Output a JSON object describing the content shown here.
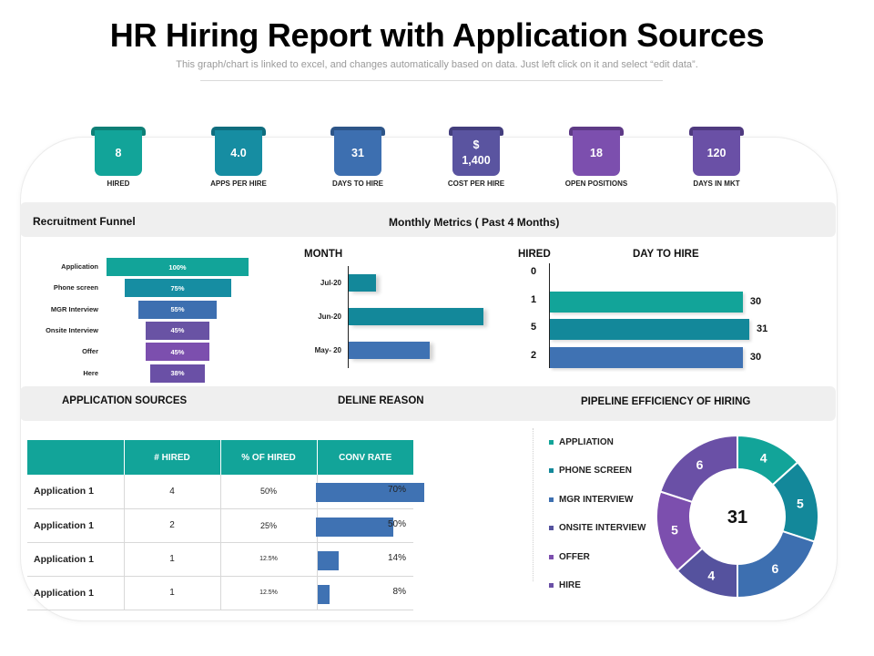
{
  "header": {
    "title": "HR Hiring Report with Application Sources",
    "subtitle": "This graph/chart is linked to excel, and changes automatically based on data.  Just left click on it and select “edit data”."
  },
  "colors": {
    "teal": "#12a499",
    "teal_dark": "#13889a",
    "blue": "#3f72b3",
    "purple": "#6b55a3",
    "purple_light": "#7c4fb0",
    "band": "#efefef"
  },
  "kpis": [
    {
      "value": "8",
      "label": "HIRED",
      "color": "#12a499",
      "tab": "#0e7f76"
    },
    {
      "value": "4.0",
      "label": "APPS PER HIRE",
      "color": "#168da2",
      "tab": "#0f6d7e"
    },
    {
      "value": "31",
      "label": "DAYS TO HIRE",
      "color": "#3d6fb0",
      "tab": "#2d5588"
    },
    {
      "value": "$\n1,400",
      "label": "COST PER HIRE",
      "color": "#5a54a0",
      "tab": "#433e7d"
    },
    {
      "value": "18",
      "label": "OPEN POSITIONS",
      "color": "#7c4fae",
      "tab": "#5e3a86"
    },
    {
      "value": "120",
      "label": "DAYS IN MKT",
      "color": "#6a50a6",
      "tab": "#4f3a7f"
    }
  ],
  "sections": {
    "funnel_title": "Recruitment Funnel",
    "monthly_title": "Monthly Metrics ( Past 4 Months)",
    "month_head": "MONTH",
    "hired_head": "HIRED",
    "day_to_hire_head": "DAY TO HIRE",
    "app_sources_title": "APPLICATION SOURCES",
    "decline_title": "DELINE REASON",
    "pipeline_title": "PIPELINE EFFICIENCY  OF HIRING"
  },
  "chart_data": [
    {
      "type": "bar",
      "name": "funnel",
      "categories": [
        "Application",
        "Phone screen",
        "MGR Interview",
        "Onsite Interview",
        "Offer",
        "Here"
      ],
      "values": [
        100,
        75,
        55,
        45,
        45,
        38
      ],
      "labels": [
        "100%",
        "75%",
        "55%",
        "45%",
        "45%",
        "38%"
      ]
    },
    {
      "type": "bar",
      "name": "monthly",
      "categories": [
        "Jul-20",
        "Jun-20",
        "May- 20"
      ],
      "values": [
        3,
        15,
        9
      ]
    },
    {
      "type": "bar",
      "name": "day_to_hire",
      "categories": [
        "0",
        "1",
        "5",
        "2"
      ],
      "values": [
        null,
        30,
        31,
        30
      ],
      "labels": [
        "",
        "30",
        "31",
        "30"
      ]
    },
    {
      "type": "pie",
      "name": "pipeline",
      "center_label": "31",
      "categories": [
        "APPLIATION",
        "PHONE SCREEN",
        "MGR INTERVIEW",
        "ONSITE INTERVIEW",
        "OFFER",
        "HIRE"
      ],
      "values": [
        4,
        5,
        6,
        4,
        5,
        6
      ],
      "colors": [
        "#12a499",
        "#13889a",
        "#3d6fb0",
        "#55529e",
        "#7c4fae",
        "#6a50a6"
      ]
    }
  ],
  "table": {
    "headers": [
      "",
      "# HIRED",
      "% OF HIRED",
      "CONV RATE"
    ],
    "rows": [
      {
        "name": "Application 1",
        "hired": "4",
        "pct": "50%",
        "conv": 70,
        "conv_label": "70%"
      },
      {
        "name": "Application 1",
        "hired": "2",
        "pct": "25%",
        "conv": 50,
        "conv_label": "50%"
      },
      {
        "name": "Application 1",
        "hired": "1",
        "pct": "12.5%",
        "conv": 14,
        "conv_label": "14%"
      },
      {
        "name": "Application 1",
        "hired": "1",
        "pct": "12.5%",
        "conv": 8,
        "conv_label": "8%"
      }
    ]
  }
}
